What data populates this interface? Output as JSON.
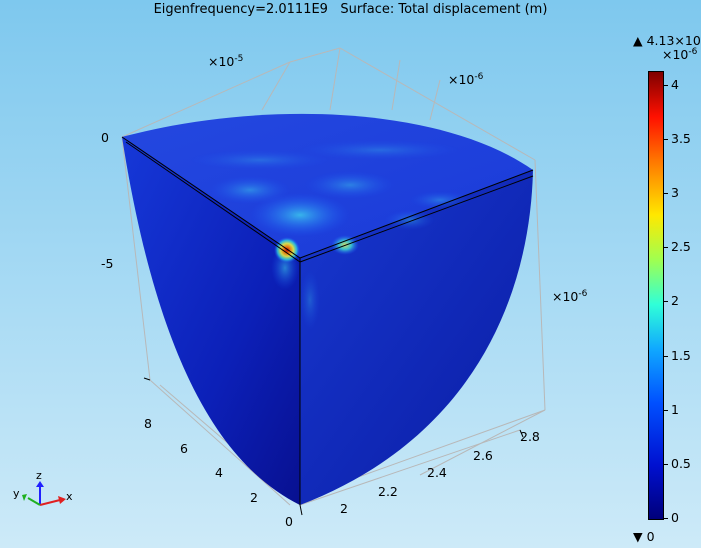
{
  "title": "Eigenfrequency=2.0111E9   Surface: Total displacement (m)",
  "axis_multipliers": {
    "z": {
      "base": "×10",
      "exp": "-5"
    },
    "y_top": {
      "base": "×10",
      "exp": "-6"
    },
    "y_right": {
      "base": "×10",
      "exp": "-6"
    }
  },
  "z_ticks": [
    "0",
    "-5"
  ],
  "left_ticks": [
    "8",
    "6",
    "4",
    "2",
    "0"
  ],
  "bottom_ticks": [
    "2",
    "2.2",
    "2.4",
    "2.6",
    "2.8"
  ],
  "colorbar": {
    "max_label": "▲ 4.13×10",
    "max_exp": "-6",
    "unit_exp": "×10",
    "unit_exp_value": "-6",
    "min_label": "▼ 0",
    "ticks": [
      "4",
      "3.5",
      "3",
      "2.5",
      "2",
      "1.5",
      "1",
      "0.5",
      "0"
    ]
  },
  "triad": {
    "z": "z",
    "y": "y",
    "x": "x"
  },
  "colors": {
    "sky_top": "#7ec8ee",
    "surface_blue": "#1030d0",
    "hot_spot": "#d81010"
  }
}
